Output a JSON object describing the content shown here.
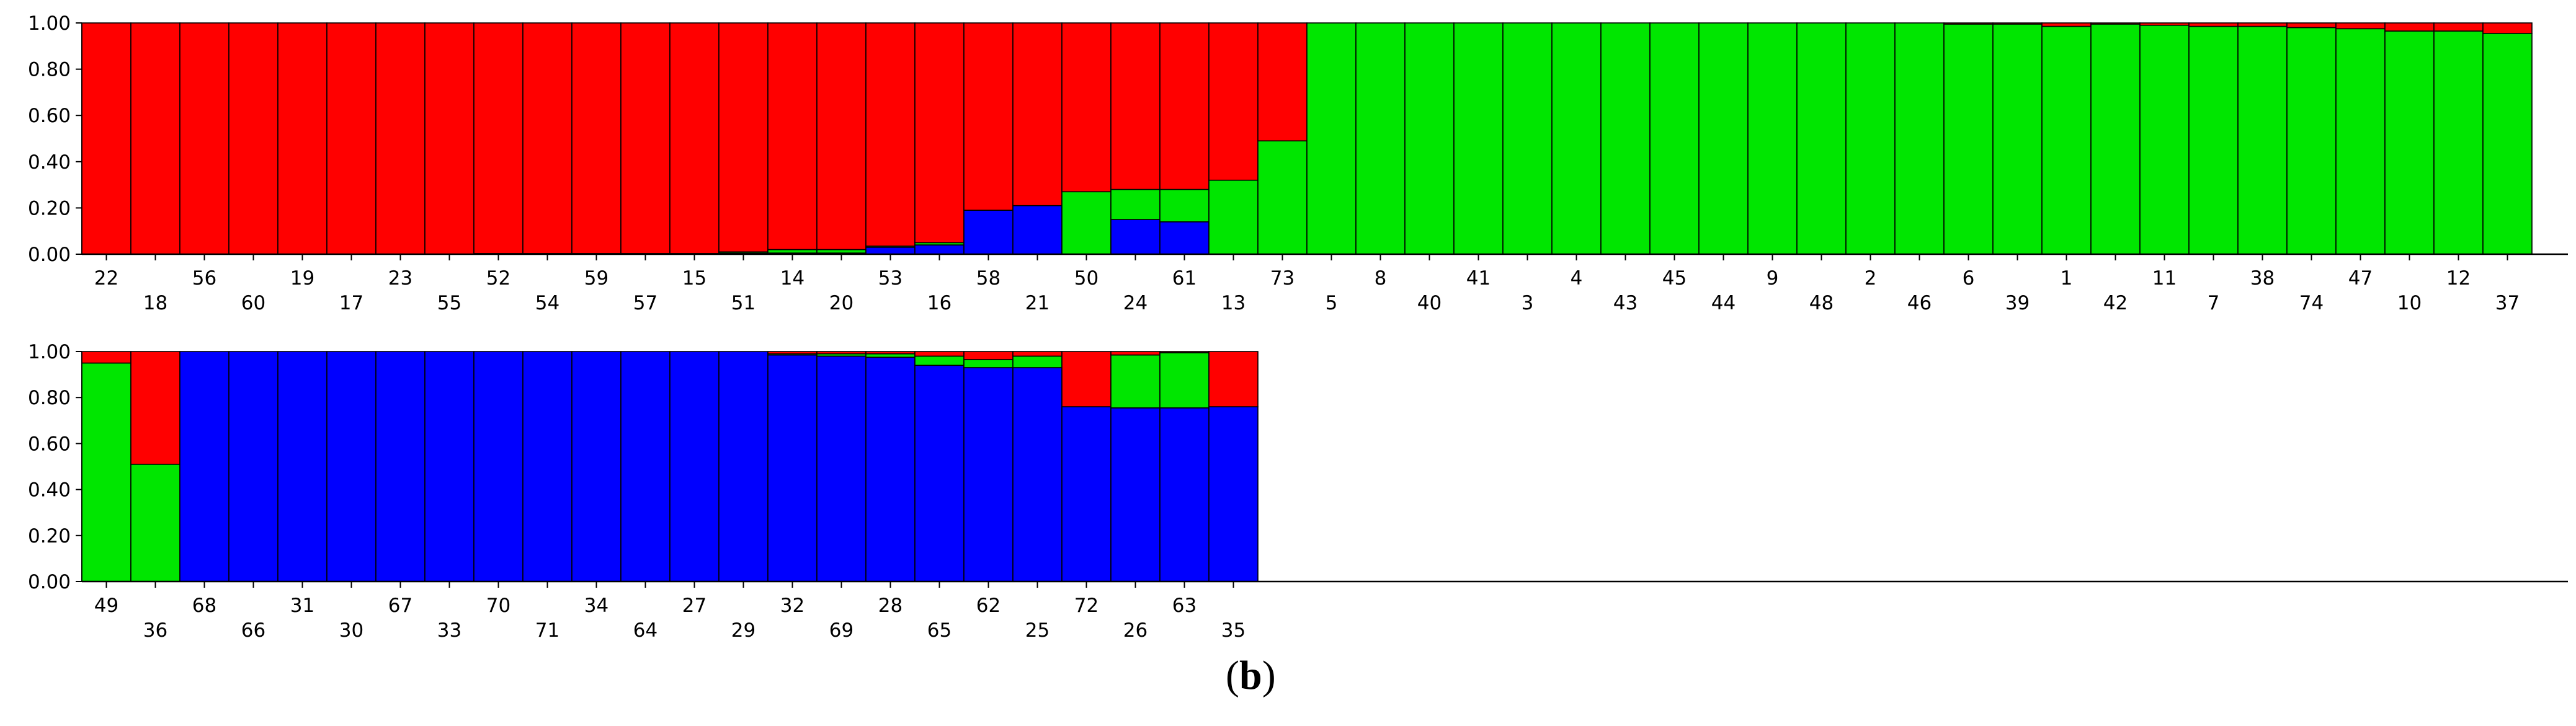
{
  "colors": {
    "red": "#ff0000",
    "green": "#00e600",
    "blue": "#0000ff"
  },
  "panel_label": {
    "open": "(",
    "letter": "b",
    "close": ")"
  },
  "chart_data": [
    {
      "type": "bar",
      "stacked": true,
      "series_order": [
        "blue",
        "green",
        "red"
      ],
      "ylim": [
        0,
        1
      ],
      "yticks": [
        "0.00",
        "0.20",
        "0.40",
        "0.60",
        "0.80",
        "1.00"
      ],
      "categories": [
        "22",
        "18",
        "56",
        "60",
        "19",
        "17",
        "23",
        "55",
        "52",
        "54",
        "59",
        "57",
        "15",
        "51",
        "14",
        "20",
        "53",
        "16",
        "58",
        "21",
        "50",
        "24",
        "61",
        "13",
        "73",
        "5",
        "8",
        "40",
        "41",
        "3",
        "4",
        "43",
        "45",
        "44",
        "9",
        "48",
        "2",
        "46",
        "6",
        "39",
        "1",
        "42",
        "11",
        "7",
        "38",
        "74",
        "47",
        "10",
        "12",
        "37"
      ],
      "series": [
        {
          "color": "blue",
          "values": [
            0,
            0,
            0,
            0,
            0,
            0,
            0,
            0,
            0,
            0,
            0,
            0,
            0,
            0.005,
            0.005,
            0.005,
            0.03,
            0.04,
            0.19,
            0.21,
            0,
            0.15,
            0.14,
            0,
            0,
            0,
            0,
            0,
            0,
            0,
            0,
            0,
            0,
            0,
            0,
            0,
            0,
            0,
            0,
            0,
            0,
            0,
            0,
            0,
            0,
            0,
            0,
            0,
            0,
            0
          ]
        },
        {
          "color": "green",
          "values": [
            0,
            0,
            0,
            0,
            0,
            0,
            0,
            0,
            0.003,
            0.003,
            0.003,
            0.003,
            0.003,
            0.005,
            0.015,
            0.015,
            0.005,
            0.01,
            0,
            0,
            0.27,
            0.13,
            0.14,
            0.32,
            0.49,
            1.0,
            1.0,
            1.0,
            1.0,
            1.0,
            1.0,
            1.0,
            1.0,
            1.0,
            1.0,
            1.0,
            1.0,
            1.0,
            0.995,
            0.995,
            0.985,
            0.995,
            0.99,
            0.985,
            0.985,
            0.98,
            0.975,
            0.965,
            0.965,
            0.955
          ]
        },
        {
          "color": "red",
          "values": [
            1,
            1,
            1,
            1,
            1,
            1,
            1,
            1,
            0.997,
            0.997,
            0.997,
            0.997,
            0.997,
            0.99,
            0.98,
            0.98,
            0.965,
            0.95,
            0.81,
            0.79,
            0.73,
            0.72,
            0.72,
            0.68,
            0.51,
            0,
            0,
            0,
            0,
            0,
            0,
            0,
            0,
            0,
            0,
            0,
            0,
            0,
            0.005,
            0.005,
            0.015,
            0.005,
            0.01,
            0.015,
            0.015,
            0.02,
            0.025,
            0.035,
            0.035,
            0.045
          ]
        }
      ]
    },
    {
      "type": "bar",
      "stacked": true,
      "series_order": [
        "blue",
        "green",
        "red"
      ],
      "ylim": [
        0,
        1
      ],
      "yticks": [
        "0.00",
        "0.20",
        "0.40",
        "0.60",
        "0.80",
        "1.00"
      ],
      "categories": [
        "49",
        "36",
        "68",
        "66",
        "31",
        "30",
        "67",
        "33",
        "70",
        "71",
        "34",
        "64",
        "27",
        "29",
        "32",
        "69",
        "28",
        "65",
        "62",
        "25",
        "72",
        "26",
        "63",
        "35"
      ],
      "series": [
        {
          "color": "blue",
          "values": [
            0,
            0,
            1,
            1,
            1,
            1,
            1,
            1,
            1,
            1,
            1,
            1,
            1,
            1,
            0.985,
            0.98,
            0.975,
            0.94,
            0.93,
            0.93,
            0.76,
            0.755,
            0.755,
            0.76
          ]
        },
        {
          "color": "green",
          "values": [
            0.95,
            0.51,
            0,
            0,
            0,
            0,
            0,
            0,
            0,
            0,
            0,
            0,
            0,
            0,
            0.005,
            0.01,
            0.015,
            0.04,
            0.035,
            0.05,
            0,
            0.23,
            0.24,
            0
          ]
        },
        {
          "color": "red",
          "values": [
            0.05,
            0.49,
            0,
            0,
            0,
            0,
            0,
            0,
            0,
            0,
            0,
            0,
            0,
            0,
            0.01,
            0.01,
            0.01,
            0.02,
            0.035,
            0.02,
            0.24,
            0.015,
            0.005,
            0.24
          ]
        }
      ]
    }
  ]
}
